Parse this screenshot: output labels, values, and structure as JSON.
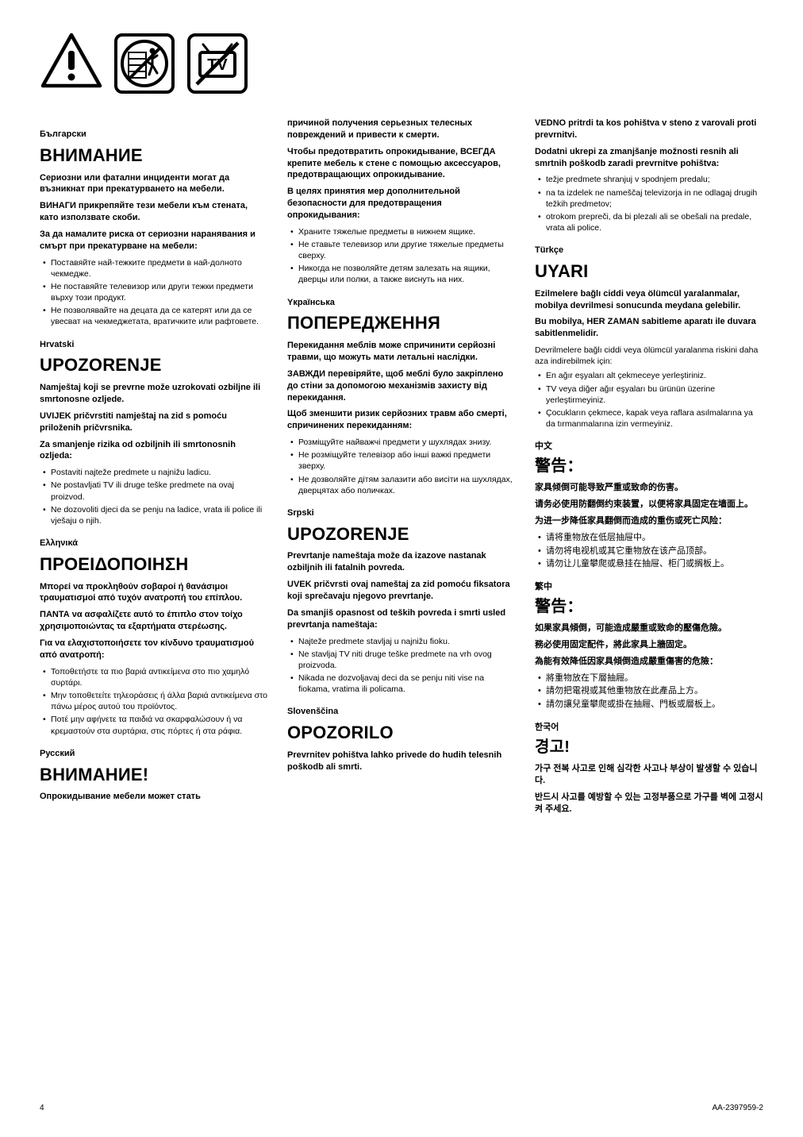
{
  "footer": {
    "page": "4",
    "code": "AA-2397959-2"
  },
  "sections": [
    {
      "lang": "Български",
      "heading": "ВНИМАНИЕ",
      "paras": [
        "Сериозни или фатални инциденти могат да възникнат при прекатурването на мебели.",
        "ВИНАГИ прикрепяйте тези мебели към стената, като използвате скоби.",
        "За да намалите риска от сериозни наранявания и смърт при прекатурване на мебели:"
      ],
      "bullets": [
        "Поставяйте най-тежките предмети в най-долното чекмедже.",
        "Не поставяйте телевизор или други тежки предмети върху този продукт.",
        "Не позволявайте на децата да се катерят или да се увесват на чекмеджетата, вратичките или рафтовете."
      ]
    },
    {
      "lang": "Hrvatski",
      "heading": "UPOZORENJE",
      "paras": [
        "Namještaj koji se prevrne može uzrokovati ozbiljne ili smrtonosne ozljede.",
        "UVIJEK pričvrstiti namještaj na zid s pomoću priloženih pričvrsnika.",
        "Za smanjenje rizika od ozbiljnih ili smrtonosnih ozljeda:"
      ],
      "bullets": [
        "Postaviti najteže predmete u najnižu ladicu.",
        "Ne postavljati TV ili druge teške predmete na ovaj proizvod.",
        "Ne dozovoliti djeci da se penju na ladice, vrata ili police ili vješaju o njih."
      ]
    },
    {
      "lang": "Ελληνικά",
      "heading": "ΠΡΟΕΙΔΟΠΟΙΗΣΗ",
      "paras": [
        "Μπορεί να προκληθούν σοβαροί ή θανάσιμοι τραυματισμοί από τυχόν ανατροπή του επίπλου.",
        "ΠΑΝΤΑ να ασφαλίζετε αυτό το έπιπλο στον τοίχο χρησιμοποιώντας τα εξαρτήματα στερέωσης.",
        "Για να ελαχιστοποιήσετε τον κίνδυνο τραυματισμού από ανατροπή:"
      ],
      "bullets": [
        "Τοποθετήστε τα πιο βαριά αντικείμενα στο πιο χαμηλό συρτάρι.",
        "Μην τοποθετείτε τηλεοράσεις ή άλλα βαριά αντικείμενα στο πάνω μέρος αυτού του προϊόντος.",
        "Ποτέ μην αφήνετε τα παιδιά να σκαρφαλώσουν ή να κρεμαστούν στα συρτάρια, στις πόρτες ή στα ράφια."
      ]
    },
    {
      "lang": "Русский",
      "heading": "ВНИМАНИЕ!",
      "paras": [
        "Опрокидывание мебели может стать"
      ],
      "bullets": []
    },
    {
      "lang": "",
      "heading": "",
      "paras": [
        "причиной получения серьезных телесных повреждений и привести к смерти.",
        "Чтобы предотвратить опрокидывание, ВСЕГДА крепите мебель к стене с помощью аксессуаров, предотвращающих опрокидывание.",
        "В целях принятия мер дополнительной безопасности для предотвращения опрокидывания:"
      ],
      "bullets": [
        "Храните тяжелые предметы в нижнем ящике.",
        "Не ставьте телевизор или другие тяжелые предметы сверху.",
        "Никогда не позволяйте детям залезать на ящики, дверцы или полки, а также виснуть на них."
      ]
    },
    {
      "lang": "Yкраїнська",
      "heading": "ПОПЕРЕДЖЕННЯ",
      "paras": [
        "Перекидання меблів може спричинити серйозні травми, що можуть мати летальні наслідки.",
        "ЗАВЖДИ перевіряйте, щоб меблі було закріплено до стіни за допомогою механізмів захисту від перекидання.",
        "Щоб зменшити ризик серйозних травм або смерті, спричинених перекиданням:"
      ],
      "bullets": [
        "Розміщуйте найважчі предмети у шухлядах знизу.",
        "Не розміщуйте телевізор або інші важкі предмети зверху.",
        "Не дозволяйте дітям залазити або висіти на шухлядах, дверцятах або поличках."
      ]
    },
    {
      "lang": "Srpski",
      "heading": "UPOZORENJE",
      "paras": [
        "Prevrtanje nameštaja može da izazove nastanak ozbiljnih ili fatalnih povreda.",
        "UVEK pričvrsti ovaj nameštaj za zid pomoću fiksatora koji sprečavaju njegovo prevrtanje.",
        "Da smanjiš opasnost od teških povreda i smrti usled prevrtanja nameštaja:"
      ],
      "bullets": [
        "Najteže predmete stavljaj u najnižu fioku.",
        "Ne stavljaj TV niti druge teške predmete na vrh ovog proizvoda.",
        "Nikada ne dozvoljavaj deci da se penju niti vise na fiokama, vratima ili policama."
      ]
    },
    {
      "lang": "Slovenščina",
      "heading": "OPOZORILO",
      "paras": [
        "Prevrnitev pohištva lahko privede do hudih telesnih poškodb ali smrti."
      ],
      "bullets": []
    },
    {
      "lang": "",
      "heading": "",
      "paras": [
        "VEDNO pritrdi ta kos pohištva v steno z varovali proti prevrnitvi.",
        "Dodatni ukrepi za zmanjšanje možnosti resnih ali smrtnih poškodb zaradi prevrnitve pohištva:"
      ],
      "bullets": [
        "težje predmete shranjuj v spodnjem predalu;",
        "na ta izdelek ne nameščaj televizorja in ne odlagaj drugih težkih predmetov;",
        "otrokom prepreči, da bi plezali ali se obešali na predale, vrata ali police."
      ]
    },
    {
      "lang": "Türkçe",
      "heading": "UYARI",
      "paras": [
        "Ezilmelere bağlı ciddi veya ölümcül yaralanmalar, mobilya devrilmesi sonucunda meydana gelebilir.",
        "Bu mobilya, HER ZAMAN sabitleme aparatı ile duvara sabitlenmelidir."
      ],
      "subpara": "Devrilmelere bağlı ciddi veya ölümcül yaralanma riskini daha aza indirebilmek için:",
      "bullets": [
        "En ağır eşyaları alt çekmeceye yerleştiriniz.",
        "TV veya diğer ağır eşyaları bu ürünün üzerine yerleştirmeyiniz.",
        "Çocukların çekmece, kapak veya raflara asılmalarına ya da tırmanmalarına izin vermeyiniz."
      ]
    },
    {
      "lang": "中文",
      "heading": "警告：",
      "cjk": true,
      "paras": [
        "家具倾倒可能导致严重或致命的伤害。",
        "请务必使用防翻倒约束装置，以便将家具固定在墙面上。",
        "为进一步降低家具翻倒而造成的重伤或死亡风险："
      ],
      "bullets": [
        "请将重物放在低层抽屉中。",
        "请勿将电视机或其它重物放在该产品顶部。",
        "请勿让儿童攀爬或悬挂在抽屉、柜门或搁板上。"
      ]
    },
    {
      "lang": "繁中",
      "heading": "警告：",
      "cjk": true,
      "paras": [
        "如果家具傾倒，可能造成嚴重或致命的壓傷危險。",
        "務必使用固定配件，將此家具上牆固定。",
        "為能有效降低因家具傾倒造成嚴重傷害的危險："
      ],
      "bullets": [
        "將重物放在下層抽屜。",
        "請勿把電視或其他重物放在此產品上方。",
        "請勿讓兒童攀爬或掛在抽屜、門板或層板上。"
      ]
    },
    {
      "lang": "한국어",
      "heading": "경고!",
      "cjk": true,
      "paras": [
        "가구 전복 사고로 인해 심각한 사고나 부상이 발생할 수 있습니다.",
        "반드시 사고를 예방할 수 있는 고정부품으로 가구를 벽에 고정시켜 주세요."
      ],
      "bullets": []
    }
  ]
}
